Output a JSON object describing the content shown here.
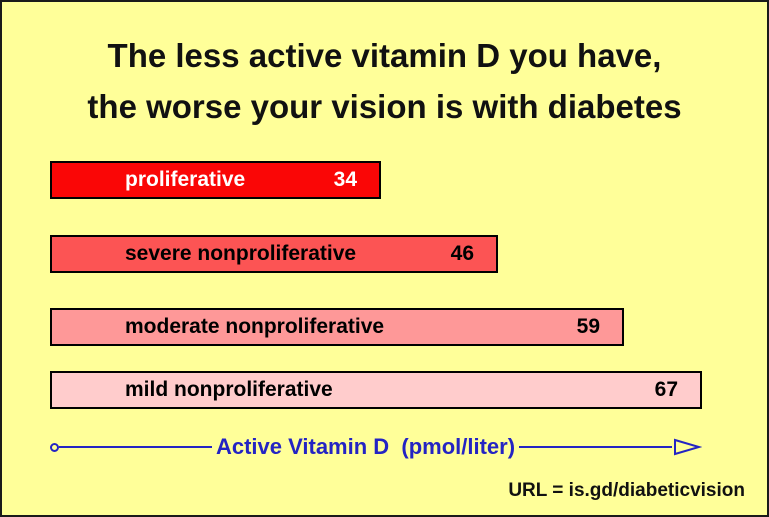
{
  "title": {
    "line1": "The less active vitamin D you have,",
    "line2": "the worse your vision is with diabetes"
  },
  "chart_data": {
    "type": "bar",
    "orientation": "horizontal",
    "title": "The less active vitamin D you have, the worse your vision is with diabetes",
    "categories": [
      "proliferative",
      "severe nonproliferative",
      "moderate nonproliferative",
      "mild nonproliferative"
    ],
    "values": [
      34,
      46,
      59,
      67
    ],
    "value_labels_shown": true,
    "xlabel": "Active Vitamin D  (pmol/liter)",
    "xlim": [
      0,
      70
    ],
    "grid": false,
    "legend_position": "none",
    "background_color": "#ffff99",
    "axis_color": "#2424c3",
    "bar_colors": [
      "#fa0606",
      "#fc5454",
      "#fe9898",
      "#ffcccc"
    ],
    "bar_text_colors": [
      "#ffffff",
      "#000000",
      "#000000",
      "#000000"
    ],
    "bar_border_color": "#000000"
  },
  "footer": {
    "url_label": "URL = is.gd/diabeticvision"
  }
}
